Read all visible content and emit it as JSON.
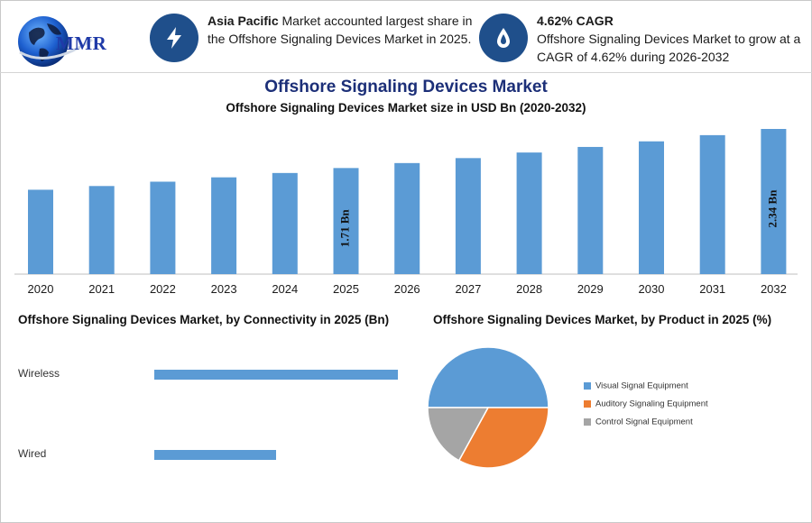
{
  "logo": {
    "text": "MMR"
  },
  "info_cards": [
    {
      "icon": "lightning-icon",
      "bold": "Asia Pacific",
      "text": " Market accounted largest share in the Offshore Signaling Devices Market in 2025."
    },
    {
      "icon": "drop-icon",
      "bold": "4.62% CAGR",
      "text": "Offshore Signaling Devices Market to grow at a CAGR of 4.62% during 2026-2032"
    }
  ],
  "colors": {
    "accent": "#1f4f8b",
    "bar": "#5b9bd5",
    "orange": "#ed7d31",
    "gray": "#a5a5a5",
    "title": "#1c2f78"
  },
  "title": "Offshore Signaling Devices Market",
  "subtitle": "Offshore Signaling Devices Market size in USD Bn (2020-2032)",
  "section_titles": {
    "connectivity": "Offshore Signaling Devices Market, by Connectivity in 2025 (Bn)",
    "product": "Offshore Signaling Devices Market, by Product in 2025 (%)"
  },
  "chart_data": [
    {
      "type": "bar",
      "categories": [
        "2020",
        "2021",
        "2022",
        "2023",
        "2024",
        "2025",
        "2026",
        "2027",
        "2028",
        "2029",
        "2030",
        "2031",
        "2032"
      ],
      "values": [
        1.36,
        1.42,
        1.49,
        1.56,
        1.63,
        1.71,
        1.79,
        1.87,
        1.96,
        2.05,
        2.14,
        2.24,
        2.34
      ],
      "data_labels": [
        null,
        null,
        null,
        null,
        null,
        "1.71 Bn",
        null,
        null,
        null,
        null,
        null,
        null,
        "2.34 Bn"
      ],
      "ylim": [
        0,
        2.34
      ],
      "grid": false,
      "legend": "none"
    },
    {
      "type": "bar",
      "orientation": "horizontal",
      "categories": [
        "Wireless",
        "Wired"
      ],
      "values": [
        1.12,
        0.56
      ],
      "xlim": [
        0,
        1.12
      ],
      "grid": false,
      "legend": "none"
    },
    {
      "type": "pie",
      "labels": [
        "Visual Signal Equipment",
        "Auditory Signaling Equipment",
        "Control Signal Equipment"
      ],
      "values": [
        50,
        33,
        17
      ],
      "colors": [
        "#5b9bd5",
        "#ed7d31",
        "#a5a5a5"
      ],
      "legend": "right"
    }
  ]
}
